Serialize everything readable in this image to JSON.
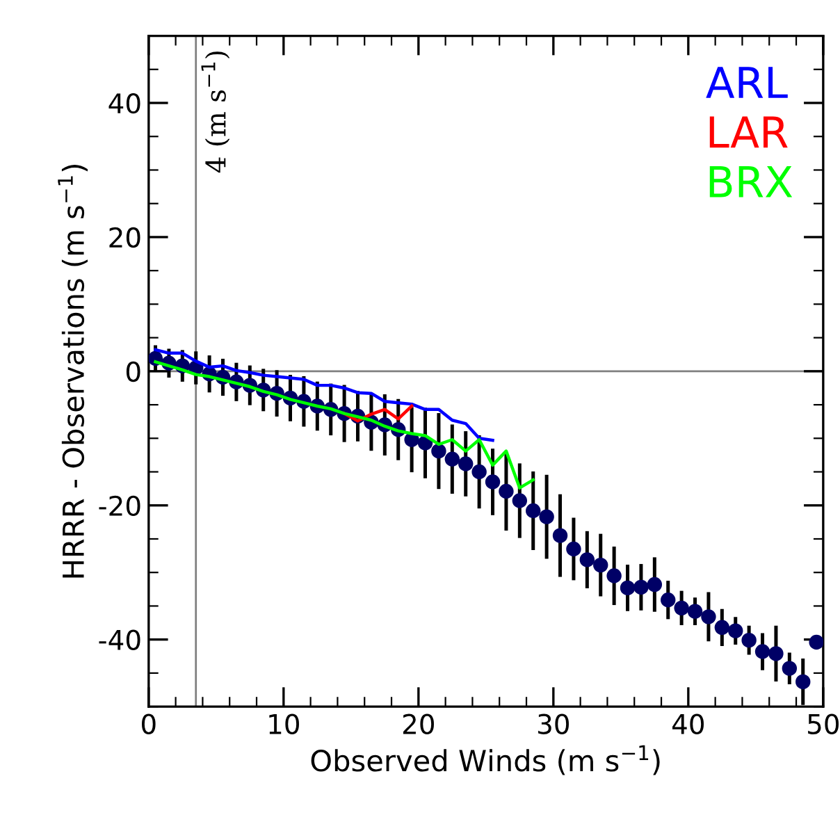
{
  "chart_data": {
    "type": "scatter",
    "xlabel": "Observed Winds (m s$^{−1}$)",
    "ylabel": "HRRR - Observations (m s$^{−1}$)",
    "xlim": [
      0,
      50
    ],
    "ylim": [
      -50,
      50
    ],
    "xticks": [
      0,
      {
        "value": 2,
        "label": null
      },
      {
        "value": 4,
        "label": null
      },
      {
        "value": 6,
        "label": null
      },
      {
        "value": 8,
        "label": null
      },
      10,
      {
        "value": 12,
        "label": null
      },
      {
        "value": 14,
        "label": null
      },
      {
        "value": 16,
        "label": null
      },
      {
        "value": 18,
        "label": null
      },
      20,
      {
        "value": 22,
        "label": null
      },
      {
        "value": 24,
        "label": null
      },
      {
        "value": 26,
        "label": null
      },
      {
        "value": 28,
        "label": null
      },
      30,
      {
        "value": 32,
        "label": null
      },
      {
        "value": 34,
        "label": null
      },
      {
        "value": 36,
        "label": null
      },
      {
        "value": 38,
        "label": null
      },
      40,
      {
        "value": 42,
        "label": null
      },
      {
        "value": 44,
        "label": null
      },
      {
        "value": 46,
        "label": null
      },
      {
        "value": 48,
        "label": null
      },
      50
    ],
    "yticks": [
      {
        "value": -50,
        "label": null
      },
      {
        "value": -45,
        "label": null
      },
      -40,
      {
        "value": -35,
        "label": null
      },
      {
        "value": -30,
        "label": null
      },
      {
        "value": -25,
        "label": null
      },
      -20,
      {
        "value": -15,
        "label": null
      },
      {
        "value": -10,
        "label": null
      },
      {
        "value": -5,
        "label": null
      },
      0,
      {
        "value": 5,
        "label": null
      },
      {
        "value": 10,
        "label": null
      },
      {
        "value": 15,
        "label": null
      },
      20,
      {
        "value": 25,
        "label": null
      },
      {
        "value": 30,
        "label": null
      },
      {
        "value": 35,
        "label": null
      },
      40,
      {
        "value": 45,
        "label": null
      },
      {
        "value": 50,
        "label": null
      }
    ],
    "grid": false,
    "legend": "top right",
    "ref_lines": [
      {
        "axis": "y",
        "value": 0,
        "color": "#808080"
      },
      {
        "axis": "x",
        "value": 3.5,
        "label": "4 (m s$^{−1}$)",
        "color": "#808080"
      }
    ],
    "series": [
      {
        "name": "ARL",
        "type": "line",
        "color": "#0000ff",
        "x": [
          0.5,
          1.5,
          2.5,
          3.5,
          4.5,
          5.5,
          6.5,
          7.5,
          8.5,
          9.5,
          10.5,
          11.5,
          12.5,
          13.5,
          14.5,
          15.5,
          16.5,
          17.5,
          18.5,
          19.5,
          20.5,
          21.5,
          22.5,
          23.5,
          24.5,
          25.5
        ],
        "values": [
          3.2,
          2.7,
          2.7,
          1.5,
          0.6,
          0.8,
          0.1,
          -0.2,
          -0.6,
          -0.8,
          -1.0,
          -1.2,
          -2.1,
          -2.1,
          -2.5,
          -3.2,
          -3.3,
          -4.5,
          -4.7,
          -4.9,
          -5.7,
          -5.7,
          -7.3,
          -7.8,
          -10.0,
          -10.3
        ]
      },
      {
        "name": "LAR",
        "type": "line",
        "color": "#ff0000",
        "x": [
          14.5,
          15.5,
          16.5,
          17.5,
          18.5,
          19.5
        ],
        "values": [
          -6.3,
          -7.4,
          -6.4,
          -5.7,
          -7.1,
          -5.2
        ]
      },
      {
        "name": "BRX",
        "type": "line",
        "color": "#00ff00",
        "x": [
          0.5,
          1.5,
          2.5,
          3.5,
          4.5,
          5.5,
          6.5,
          7.5,
          8.5,
          9.5,
          10.5,
          11.5,
          12.5,
          13.5,
          14.5,
          15.5,
          16.5,
          17.5,
          18.5,
          19.5,
          20.5,
          21.5,
          22.5,
          23.5,
          24.5,
          25.5,
          26.5,
          27.5,
          28.5
        ],
        "values": [
          1.4,
          0.8,
          0.2,
          -0.5,
          -0.8,
          -1.3,
          -1.8,
          -2.3,
          -3.0,
          -3.5,
          -4.2,
          -4.7,
          -5.2,
          -5.6,
          -6.3,
          -6.8,
          -7.3,
          -8.2,
          -8.9,
          -9.3,
          -9.6,
          -10.9,
          -10.2,
          -11.9,
          -10.2,
          -14.0,
          -11.9,
          -17.4,
          -16.2
        ]
      },
      {
        "color": "#000066",
        "marker": "circle",
        "x": [
          0.5,
          1.5,
          2.5,
          3.5,
          4.5,
          5.5,
          6.5,
          7.5,
          8.5,
          9.5,
          10.5,
          11.5,
          12.5,
          13.5,
          14.5,
          15.5,
          16.5,
          17.5,
          18.5,
          19.5,
          20.5,
          21.5,
          22.5,
          23.5,
          24.5,
          25.5,
          26.5,
          27.5,
          28.5,
          29.5,
          30.5,
          31.5,
          32.5,
          33.5,
          34.5,
          35.5,
          36.5,
          37.5,
          38.5,
          39.5,
          40.5,
          41.5,
          42.5,
          43.5,
          44.5,
          45.5,
          46.5,
          47.5,
          48.5,
          49.5
        ],
        "values": [
          1.9,
          1.2,
          0.8,
          0.5,
          -0.4,
          -0.9,
          -1.6,
          -2.1,
          -2.8,
          -3.3,
          -4.0,
          -4.5,
          -5.2,
          -5.7,
          -6.3,
          -6.7,
          -7.6,
          -8.0,
          -8.7,
          -10.2,
          -10.7,
          -11.9,
          -13.1,
          -13.8,
          -15.0,
          -16.5,
          -17.9,
          -19.3,
          -20.8,
          -21.7,
          -24.5,
          -26.5,
          -28.1,
          -28.9,
          -30.5,
          -32.3,
          -32.2,
          -31.8,
          -34.1,
          -35.3,
          -35.8,
          -36.6,
          -38.2,
          -38.7,
          -40.1,
          -41.8,
          -42.1,
          -44.3,
          -46.3,
          -40.4
        ],
        "errors": [
          1.7,
          1.9,
          2.1,
          2.2,
          2.5,
          2.5,
          2.6,
          2.7,
          2.9,
          3.2,
          3.2,
          3.5,
          3.4,
          3.6,
          4.0,
          3.5,
          4.0,
          4.3,
          4.3,
          4.6,
          5.0,
          5.4,
          4.9,
          4.6,
          5.2,
          4.7,
          5.6,
          5.3,
          5.6,
          6.0,
          5.9,
          4.4,
          4.0,
          4.4,
          4.1,
          3.2,
          3.2,
          3.8,
          2.6,
          2.3,
          1.8,
          3.4,
          2.5,
          1.8,
          1.9,
          2.5,
          3.9,
          2.1,
          3.2,
          null
        ]
      }
    ]
  }
}
